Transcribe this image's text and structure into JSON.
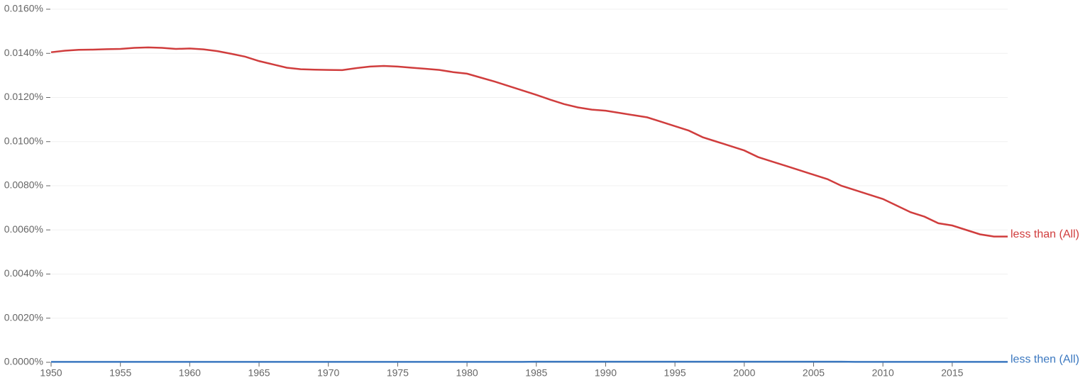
{
  "chart_data": {
    "type": "line",
    "x": [
      1950,
      1951,
      1952,
      1953,
      1954,
      1955,
      1956,
      1957,
      1958,
      1959,
      1960,
      1961,
      1962,
      1963,
      1964,
      1965,
      1966,
      1967,
      1968,
      1969,
      1970,
      1971,
      1972,
      1973,
      1974,
      1975,
      1976,
      1977,
      1978,
      1979,
      1980,
      1981,
      1982,
      1983,
      1984,
      1985,
      1986,
      1987,
      1988,
      1989,
      1990,
      1991,
      1992,
      1993,
      1994,
      1995,
      1996,
      1997,
      1998,
      1999,
      2000,
      2001,
      2002,
      2003,
      2004,
      2005,
      2006,
      2007,
      2008,
      2009,
      2010,
      2011,
      2012,
      2013,
      2014,
      2015,
      2016,
      2017,
      2018,
      2019
    ],
    "series": [
      {
        "name": "less than (All)",
        "color": "#d03d3d",
        "values": [
          0.01405,
          0.01412,
          0.01416,
          0.01417,
          0.01419,
          0.0142,
          0.01425,
          0.01427,
          0.01425,
          0.0142,
          0.01422,
          0.01418,
          0.0141,
          0.01398,
          0.01385,
          0.01365,
          0.0135,
          0.01335,
          0.01328,
          0.01326,
          0.01325,
          0.01324,
          0.01333,
          0.0134,
          0.01343,
          0.0134,
          0.01335,
          0.0133,
          0.01325,
          0.01315,
          0.01308,
          0.0129,
          0.01272,
          0.01252,
          0.01232,
          0.01212,
          0.0119,
          0.0117,
          0.01155,
          0.01145,
          0.0114,
          0.0113,
          0.0112,
          0.0111,
          0.0109,
          0.0107,
          0.0105,
          0.0102,
          0.01,
          0.0098,
          0.0096,
          0.0093,
          0.0091,
          0.0089,
          0.0087,
          0.0085,
          0.0083,
          0.008,
          0.0078,
          0.0076,
          0.0074,
          0.0071,
          0.0068,
          0.0066,
          0.0063,
          0.0062,
          0.006,
          0.0058,
          0.0057,
          0.0057
        ]
      },
      {
        "name": "less then (All)",
        "color": "#3b78c0",
        "values": [
          2e-05,
          2e-05,
          2e-05,
          2e-05,
          2e-05,
          2e-05,
          2e-05,
          2e-05,
          2e-05,
          2e-05,
          2e-05,
          2e-05,
          2e-05,
          2e-05,
          2e-05,
          2e-05,
          2e-05,
          2e-05,
          2e-05,
          2e-05,
          2e-05,
          2e-05,
          2e-05,
          2e-05,
          2e-05,
          2e-05,
          2e-05,
          2e-05,
          2e-05,
          2e-05,
          2e-05,
          2e-05,
          2e-05,
          2e-05,
          2e-05,
          3e-05,
          3e-05,
          3e-05,
          3e-05,
          3e-05,
          3e-05,
          3e-05,
          3e-05,
          3e-05,
          3e-05,
          3e-05,
          3e-05,
          3e-05,
          3e-05,
          3e-05,
          3e-05,
          3e-05,
          3e-05,
          3e-05,
          3e-05,
          3e-05,
          3e-05,
          3e-05,
          2e-05,
          2e-05,
          2e-05,
          2e-05,
          2e-05,
          2e-05,
          2e-05,
          2e-05,
          2e-05,
          2e-05,
          2e-05,
          2e-05
        ]
      }
    ],
    "xlim": [
      1950,
      2019
    ],
    "xticks": [
      1950,
      1955,
      1960,
      1965,
      1970,
      1975,
      1980,
      1985,
      1990,
      1995,
      2000,
      2005,
      2010,
      2015
    ],
    "ylim": [
      0,
      0.016
    ],
    "yticks": [
      {
        "value": 0,
        "label": "0.0000%"
      },
      {
        "value": 0.002,
        "label": "0.0020%"
      },
      {
        "value": 0.004,
        "label": "0.0040%"
      },
      {
        "value": 0.006,
        "label": "0.0060%"
      },
      {
        "value": 0.008,
        "label": "0.0080%"
      },
      {
        "value": 0.01,
        "label": "0.0100%"
      },
      {
        "value": 0.012,
        "label": "0.0120%"
      },
      {
        "value": 0.014,
        "label": "0.0140%"
      },
      {
        "value": 0.016,
        "label": "0.0160%"
      }
    ],
    "grid": true
  }
}
